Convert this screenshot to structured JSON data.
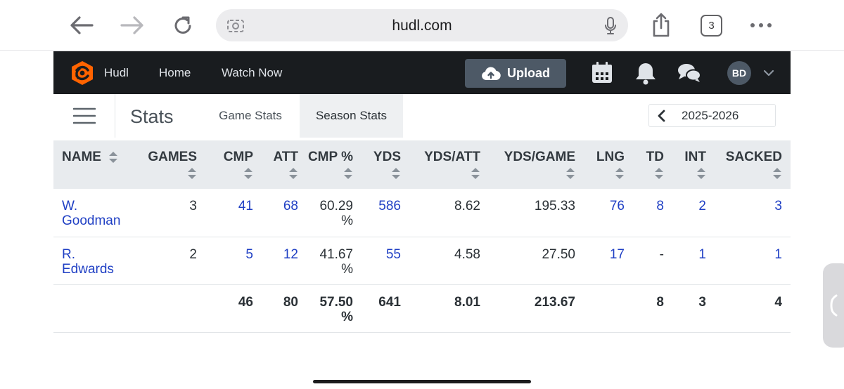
{
  "browser": {
    "url": "hudl.com",
    "tab_count": "3"
  },
  "header": {
    "brand": "Hudl",
    "nav": [
      "Home",
      "Watch Now"
    ],
    "upload_label": "Upload",
    "avatar_initials": "BD",
    "icons": [
      "calendar-icon",
      "bell-icon",
      "messages-icon",
      "chevron-down-icon"
    ]
  },
  "subnav": {
    "title": "Stats",
    "tabs": [
      {
        "label": "Game Stats",
        "active": false
      },
      {
        "label": "Season Stats",
        "active": true
      }
    ],
    "season": "2025-2026"
  },
  "table": {
    "columns": [
      "NAME",
      "GAMES",
      "CMP",
      "ATT",
      "CMP %",
      "YDS",
      "YDS/ATT",
      "YDS/GAME",
      "LNG",
      "TD",
      "INT",
      "SACKED"
    ],
    "rows": [
      {
        "name": "W. Goodman",
        "games": "3",
        "cmp": "41",
        "att": "68",
        "cmp_pct": "60.29 %",
        "yds": "586",
        "yds_att": "8.62",
        "yds_game": "195.33",
        "lng": "76",
        "td": "8",
        "int": "2",
        "sacked": "3"
      },
      {
        "name": "R. Edwards",
        "games": "2",
        "cmp": "5",
        "att": "12",
        "cmp_pct": "41.67 %",
        "yds": "55",
        "yds_att": "4.58",
        "yds_game": "27.50",
        "lng": "17",
        "td": "-",
        "int": "1",
        "sacked": "1"
      }
    ],
    "totals": {
      "cmp": "46",
      "att": "80",
      "cmp_pct": "57.50 %",
      "yds": "641",
      "yds_att": "8.01",
      "yds_game": "213.67",
      "td": "8",
      "int": "3",
      "sacked": "4"
    }
  },
  "colors": {
    "header_bg": "#191c1f",
    "link": "#1f3fc4",
    "brand_orange": "#ff6300",
    "table_header_bg": "#e8ebee"
  }
}
